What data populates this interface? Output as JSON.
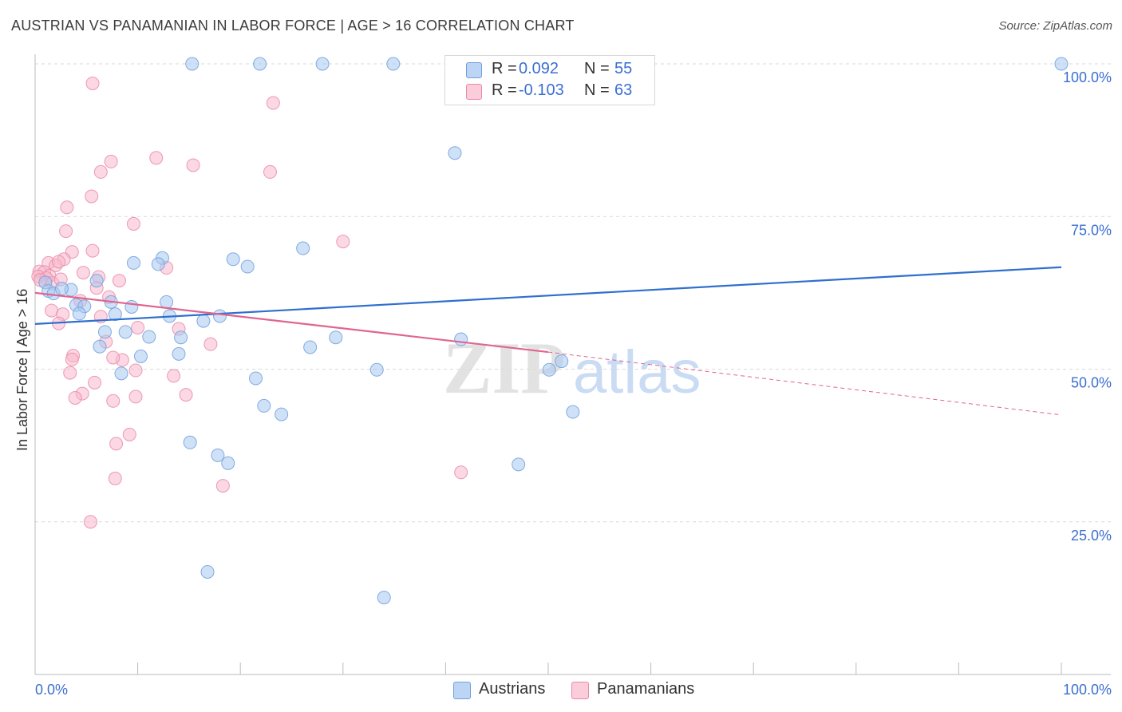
{
  "header": {
    "title": "AUSTRIAN VS PANAMANIAN IN LABOR FORCE | AGE > 16 CORRELATION CHART",
    "source": "Source: ZipAtlas.com"
  },
  "legend_top": {
    "austrians": {
      "r_label": "R =",
      "r_value": "0.092",
      "n_label": "N =",
      "n_value": "55"
    },
    "panamanians": {
      "r_label": "R =",
      "r_value": "-0.103",
      "n_label": "N =",
      "n_value": "63"
    }
  },
  "legend_bottom": {
    "austrians": "Austrians",
    "panamanians": "Panamanians"
  },
  "watermark": {
    "zip": "ZIP",
    "atlas": "atlas"
  },
  "colors": {
    "austrian_fill": "#a8c8f0",
    "austrian_stroke": "#6f9fdc",
    "austrian_line": "#2f6fce",
    "panamanian_fill": "#f7b8cc",
    "panamanian_stroke": "#e98aa8",
    "panamanian_line": "#e0658f",
    "axis_text": "#3a6fd1",
    "grid": "#d9d9d9"
  },
  "chart_data": {
    "type": "scatter",
    "title": "AUSTRIAN VS PANAMANIAN IN LABOR FORCE | AGE > 16 CORRELATION CHART",
    "xlabel": "",
    "ylabel": "In Labor Force | Age > 16",
    "xlim": [
      0,
      100
    ],
    "ylim": [
      0,
      102
    ],
    "x_tick_labels": [
      "0.0%",
      "100.0%"
    ],
    "y_ticks": [
      25,
      50,
      75,
      100
    ],
    "y_tick_labels": [
      "25.0%",
      "50.0%",
      "75.0%",
      "100.0%"
    ],
    "series": [
      {
        "name": "Austrians",
        "r": 0.092,
        "n": 55,
        "trend": {
          "x": [
            0,
            100
          ],
          "y": [
            57.4,
            66.7
          ],
          "dashed_from": null
        },
        "points": [
          [
            15.3,
            100
          ],
          [
            21.9,
            100
          ],
          [
            28.0,
            100
          ],
          [
            34.9,
            100
          ],
          [
            100,
            100
          ],
          [
            40.9,
            85.4
          ],
          [
            12.4,
            68.2
          ],
          [
            19.3,
            68.0
          ],
          [
            9.6,
            67.4
          ],
          [
            12.0,
            67.2
          ],
          [
            20.7,
            66.8
          ],
          [
            26.1,
            69.8
          ],
          [
            6.0,
            64.5
          ],
          [
            1.0,
            64.2
          ],
          [
            1.3,
            62.8
          ],
          [
            3.5,
            63.0
          ],
          [
            1.8,
            62.4
          ],
          [
            2.6,
            63.2
          ],
          [
            7.4,
            61.0
          ],
          [
            12.8,
            61.0
          ],
          [
            4.0,
            60.5
          ],
          [
            4.8,
            60.3
          ],
          [
            9.4,
            60.2
          ],
          [
            7.8,
            59.0
          ],
          [
            13.1,
            58.7
          ],
          [
            18.0,
            58.7
          ],
          [
            4.3,
            59.1
          ],
          [
            16.4,
            57.9
          ],
          [
            6.8,
            56.1
          ],
          [
            8.8,
            56.1
          ],
          [
            11.1,
            55.3
          ],
          [
            14.2,
            55.2
          ],
          [
            29.3,
            55.2
          ],
          [
            41.5,
            54.9
          ],
          [
            6.3,
            53.7
          ],
          [
            26.8,
            53.6
          ],
          [
            14.0,
            52.5
          ],
          [
            10.3,
            52.1
          ],
          [
            8.4,
            49.3
          ],
          [
            33.3,
            49.9
          ],
          [
            50.1,
            49.9
          ],
          [
            51.3,
            51.3
          ],
          [
            21.5,
            48.5
          ],
          [
            22.3,
            44.0
          ],
          [
            24.0,
            42.6
          ],
          [
            52.4,
            43.0
          ],
          [
            15.1,
            38.0
          ],
          [
            17.8,
            35.9
          ],
          [
            18.8,
            34.6
          ],
          [
            47.1,
            34.4
          ],
          [
            16.8,
            16.8
          ],
          [
            34.0,
            12.6
          ]
        ]
      },
      {
        "name": "Panamanians",
        "r": -0.103,
        "n": 63,
        "trend": {
          "x": [
            0,
            50,
            100
          ],
          "y": [
            62.5,
            52.8,
            42.5
          ],
          "dashed_from": 50
        },
        "points": [
          [
            5.6,
            96.8
          ],
          [
            23.2,
            93.6
          ],
          [
            11.8,
            84.6
          ],
          [
            7.4,
            84.0
          ],
          [
            15.4,
            83.4
          ],
          [
            6.4,
            82.3
          ],
          [
            22.9,
            82.3
          ],
          [
            5.5,
            78.3
          ],
          [
            3.1,
            76.5
          ],
          [
            9.6,
            73.8
          ],
          [
            3.0,
            72.6
          ],
          [
            30.0,
            70.9
          ],
          [
            5.6,
            69.4
          ],
          [
            3.6,
            69.2
          ],
          [
            12.8,
            66.6
          ],
          [
            2.8,
            68.0
          ],
          [
            1.3,
            67.4
          ],
          [
            2.0,
            67.0
          ],
          [
            2.3,
            67.6
          ],
          [
            0.4,
            66.0
          ],
          [
            0.9,
            65.9
          ],
          [
            1.4,
            65.3
          ],
          [
            0.3,
            65.2
          ],
          [
            1.1,
            64.9
          ],
          [
            0.5,
            64.6
          ],
          [
            1.7,
            64.1
          ],
          [
            4.7,
            65.8
          ],
          [
            6.2,
            65.1
          ],
          [
            8.2,
            64.5
          ],
          [
            2.5,
            64.7
          ],
          [
            6.0,
            63.3
          ],
          [
            7.2,
            61.8
          ],
          [
            4.4,
            61.2
          ],
          [
            1.6,
            59.6
          ],
          [
            2.7,
            59.0
          ],
          [
            6.4,
            58.6
          ],
          [
            2.3,
            57.5
          ],
          [
            10.0,
            56.8
          ],
          [
            14.0,
            56.6
          ],
          [
            17.1,
            54.1
          ],
          [
            6.9,
            54.5
          ],
          [
            3.7,
            52.2
          ],
          [
            3.6,
            51.6
          ],
          [
            8.5,
            51.5
          ],
          [
            7.6,
            51.9
          ],
          [
            9.8,
            49.8
          ],
          [
            3.4,
            49.4
          ],
          [
            13.5,
            48.9
          ],
          [
            5.8,
            47.8
          ],
          [
            4.6,
            46.0
          ],
          [
            14.7,
            45.8
          ],
          [
            3.9,
            45.3
          ],
          [
            9.8,
            45.5
          ],
          [
            7.6,
            44.8
          ],
          [
            9.2,
            39.3
          ],
          [
            7.9,
            37.8
          ],
          [
            41.5,
            33.1
          ],
          [
            7.8,
            32.1
          ],
          [
            18.3,
            30.9
          ],
          [
            5.4,
            25.0
          ]
        ]
      }
    ]
  }
}
